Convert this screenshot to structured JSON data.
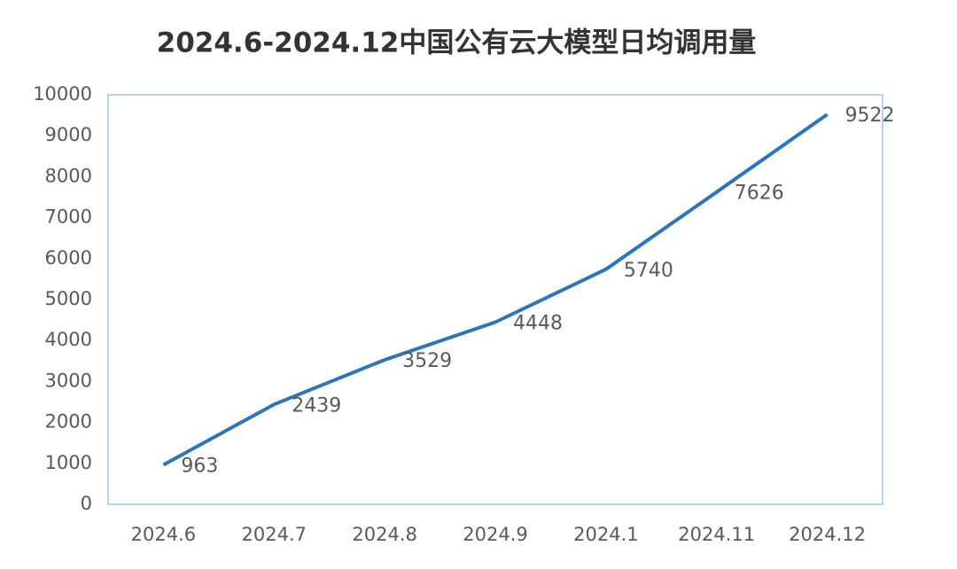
{
  "chart_data": {
    "type": "line",
    "title": "2024.6-2024.12中国公有云大模型日均调用量",
    "categories": [
      "2024.6",
      "2024.7",
      "2024.8",
      "2024.9",
      "2024.1",
      "2024.11",
      "2024.12"
    ],
    "values": [
      963,
      2439,
      3529,
      4448,
      5740,
      7626,
      9522
    ],
    "color": "#2e75b6",
    "ylim": [
      0,
      10000
    ],
    "yticks": [
      0,
      1000,
      2000,
      3000,
      4000,
      5000,
      6000,
      7000,
      8000,
      9000,
      10000
    ],
    "grid": false
  }
}
